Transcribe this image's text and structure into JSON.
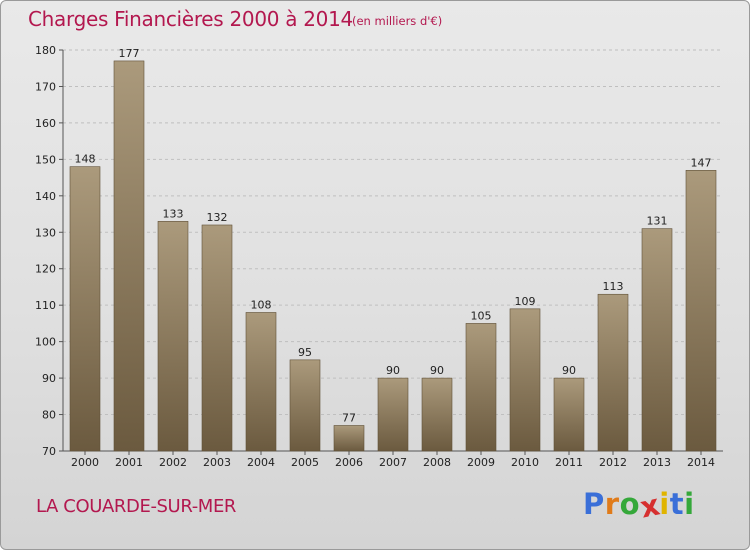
{
  "title": "Charges Financières 2000 à 2014",
  "subtitle": "(en milliers d'€)",
  "commune": "LA COUARDE-SUR-MER",
  "logo": {
    "letters": [
      "P",
      "r",
      "o",
      "x",
      "i",
      "t",
      "i"
    ],
    "colors": [
      "#3a6fd8",
      "#e07b1a",
      "#35a83a",
      "#d63030",
      "#e0b400",
      "#3a6fd8",
      "#35a83a"
    ]
  },
  "colors": {
    "title": "#b3184f",
    "bar_light": "#ab9a7c",
    "bar_dark": "#6b5a3f",
    "axis": "#555555",
    "grid": "#bfbfbf"
  },
  "chart_data": {
    "type": "bar",
    "categories": [
      "2000",
      "2001",
      "2002",
      "2003",
      "2004",
      "2005",
      "2006",
      "2007",
      "2008",
      "2009",
      "2010",
      "2011",
      "2012",
      "2013",
      "2014"
    ],
    "values": [
      148,
      177,
      133,
      132,
      108,
      95,
      77,
      90,
      90,
      105,
      109,
      90,
      113,
      131,
      147
    ],
    "ylim": [
      70,
      180
    ],
    "yticks": [
      70,
      80,
      90,
      100,
      110,
      120,
      130,
      140,
      150,
      160,
      170,
      180
    ],
    "grid": true,
    "value_labels": true
  }
}
